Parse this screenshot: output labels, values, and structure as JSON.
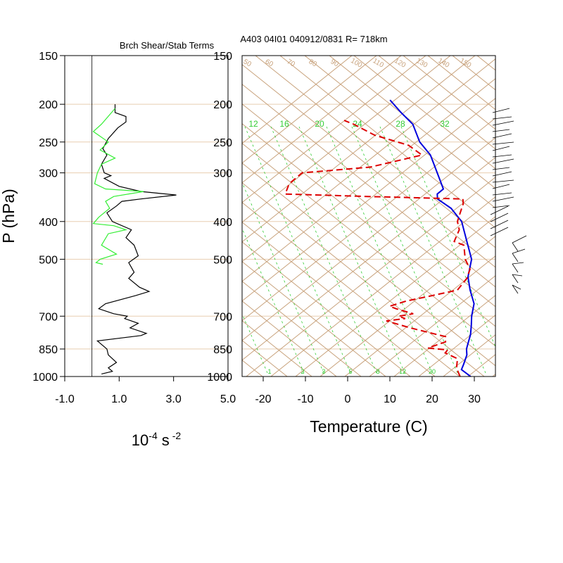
{
  "header": {
    "left_title": "Brch Shear/Stab Terms",
    "right_title": "A403 04I01 040912/0831 R= 718km"
  },
  "colors": {
    "iso_lines": "#c8a27c",
    "mixing_lines": "#33cc33",
    "temperature": "#0000dd",
    "dewpoint": "#dd0000",
    "shear_line": "#000000",
    "stability_line": "#33ee33",
    "pressure_grid": "#e8cdb0"
  },
  "chart_data": [
    {
      "type": "line",
      "name": "shear-stability-profile",
      "title": "Brch Shear/Stab Terms",
      "xlabel": "10^-4 s^-2",
      "xlabel_base": "10",
      "xlabel_exp1": "-4",
      "xlabel_unit": "s",
      "xlabel_exp2": "-2",
      "ylabel": "P (hPa)",
      "y_scale": "log",
      "xlim": [
        -1.0,
        5.0
      ],
      "ylim": [
        1000,
        150
      ],
      "x_ticks": [
        "-1.0",
        "1.0",
        "3.0",
        "5.0"
      ],
      "x_tick_values": [
        -1,
        1,
        3,
        5
      ],
      "y_ticks": [
        "150",
        "200",
        "250",
        "300",
        "400",
        "500",
        "700",
        "850",
        "1000"
      ],
      "y_tick_values": [
        150,
        200,
        250,
        300,
        400,
        500,
        700,
        850,
        1000
      ],
      "zero_line_x": 0,
      "series": [
        {
          "key": "black",
          "points": [
            [
              0.85,
              200
            ],
            [
              0.85,
              210
            ],
            [
              1.25,
              215
            ],
            [
              1.25,
              222
            ],
            [
              0.95,
              230
            ],
            [
              0.6,
              245
            ],
            [
              0.4,
              260
            ],
            [
              0.55,
              270
            ],
            [
              0.35,
              285
            ],
            [
              0.45,
              300
            ],
            [
              0.7,
              305
            ],
            [
              0.45,
              310
            ],
            [
              1.0,
              325
            ],
            [
              1.8,
              335
            ],
            [
              3.1,
              342
            ],
            [
              1.8,
              350
            ],
            [
              1.1,
              355
            ],
            [
              0.9,
              365
            ],
            [
              0.55,
              380
            ],
            [
              0.75,
              400
            ],
            [
              1.45,
              420
            ],
            [
              1.25,
              440
            ],
            [
              1.55,
              460
            ],
            [
              1.7,
              490
            ],
            [
              1.35,
              510
            ],
            [
              1.55,
              540
            ],
            [
              1.35,
              560
            ],
            [
              1.75,
              590
            ],
            [
              2.1,
              605
            ],
            [
              1.6,
              620
            ],
            [
              0.5,
              650
            ],
            [
              0.25,
              670
            ],
            [
              0.8,
              690
            ],
            [
              1.3,
              700
            ],
            [
              1.2,
              710
            ],
            [
              1.7,
              730
            ],
            [
              1.4,
              750
            ],
            [
              2.0,
              775
            ],
            [
              1.8,
              785
            ],
            [
              0.2,
              810
            ],
            [
              0.55,
              850
            ],
            [
              0.6,
              880
            ],
            [
              0.9,
              920
            ],
            [
              0.6,
              950
            ],
            [
              0.75,
              970
            ],
            [
              0.35,
              985
            ]
          ]
        },
        {
          "key": "green",
          "points": [
            [
              0.85,
              205
            ],
            [
              0.35,
              225
            ],
            [
              0.05,
              235
            ],
            [
              0.6,
              250
            ],
            [
              0.3,
              262
            ],
            [
              0.85,
              275
            ],
            [
              0.35,
              285
            ],
            [
              0.2,
              300
            ],
            [
              0.1,
              320
            ],
            [
              0.5,
              330
            ],
            [
              1.9,
              335
            ],
            [
              0.8,
              345
            ],
            [
              0.5,
              355
            ],
            [
              0.65,
              370
            ],
            [
              0.25,
              390
            ],
            [
              0.05,
              405
            ],
            [
              0.8,
              410
            ],
            [
              1.25,
              420
            ],
            [
              0.6,
              430
            ],
            [
              0.35,
              460
            ],
            [
              0.9,
              485
            ],
            [
              0.3,
              500
            ],
            [
              0.15,
              510
            ],
            [
              0.4,
              515
            ]
          ]
        }
      ]
    },
    {
      "type": "line",
      "name": "skew-t-sounding",
      "xlabel": "Temperature (C)",
      "y_scale": "log",
      "xlim": [
        -25,
        35
      ],
      "ylim": [
        1000,
        150
      ],
      "x_ticks": [
        "-20",
        "-10",
        "0",
        "10",
        "20",
        "30"
      ],
      "x_tick_values": [
        -20,
        -10,
        0,
        10,
        20,
        30
      ],
      "y_ticks": [
        "150",
        "200",
        "250",
        "300",
        "400",
        "500",
        "700",
        "850",
        "1000"
      ],
      "y_tick_values": [
        150,
        200,
        250,
        300,
        400,
        500,
        700,
        850,
        1000
      ],
      "mixing_ratio_labels": [
        "12",
        "16",
        "20",
        "24",
        "28",
        "32"
      ],
      "mixing_ratio_bottom_labels": [
        "1",
        "2",
        "3",
        "5",
        "8",
        "12",
        "20"
      ],
      "theta_labels": [
        "50",
        "60",
        "70",
        "80",
        "90",
        "100",
        "110",
        "120",
        "130",
        "140",
        "150"
      ],
      "series": [
        {
          "key": "temperature",
          "points": [
            [
              28.5,
              1000
            ],
            [
              25,
              960
            ],
            [
              24.5,
              930
            ],
            [
              23.5,
              880
            ],
            [
              22.3,
              850
            ],
            [
              21.8,
              830
            ],
            [
              20.5,
              780
            ],
            [
              19,
              740
            ],
            [
              17.3,
              700
            ],
            [
              15.5,
              650
            ],
            [
              12,
              600
            ],
            [
              9,
              555
            ],
            [
              6.5,
              500
            ],
            [
              2,
              450
            ],
            [
              -3,
              400
            ],
            [
              -8,
              370
            ],
            [
              -13,
              350
            ],
            [
              -14,
              340
            ],
            [
              -13.5,
              330
            ],
            [
              -18,
              300
            ],
            [
              -23,
              270
            ],
            [
              -28,
              250
            ],
            [
              -33,
              225
            ],
            [
              -38,
              210
            ],
            [
              -43,
              195
            ]
          ]
        },
        {
          "key": "dewpoint",
          "points": [
            [
              26,
              1000
            ],
            [
              25,
              980
            ],
            [
              23.5,
              950
            ],
            [
              22,
              900
            ],
            [
              18,
              870
            ],
            [
              18,
              855
            ],
            [
              13,
              845
            ],
            [
              16,
              815
            ],
            [
              15,
              790
            ],
            [
              10,
              770
            ],
            [
              5,
              750
            ],
            [
              -2,
              720
            ],
            [
              2,
              710
            ],
            [
              0,
              700
            ],
            [
              3,
              690
            ],
            [
              -2,
              670
            ],
            [
              -4,
              660
            ],
            [
              -1,
              640
            ],
            [
              4,
              620
            ],
            [
              9,
              600
            ],
            [
              9,
              560
            ],
            [
              8,
              530
            ],
            [
              5,
              500
            ],
            [
              2,
              460
            ],
            [
              -1,
              450
            ],
            [
              -2,
              420
            ],
            [
              -4,
              400
            ],
            [
              -5,
              380
            ],
            [
              -6,
              360
            ],
            [
              -7,
              350
            ],
            [
              -30,
              345
            ],
            [
              -50,
              340
            ],
            [
              -51,
              320
            ],
            [
              -50,
              300
            ],
            [
              -35,
              290
            ],
            [
              -25,
              270
            ],
            [
              -30,
              255
            ],
            [
              -40,
              240
            ],
            [
              -47,
              225
            ],
            [
              -50,
              220
            ]
          ]
        }
      ]
    }
  ]
}
